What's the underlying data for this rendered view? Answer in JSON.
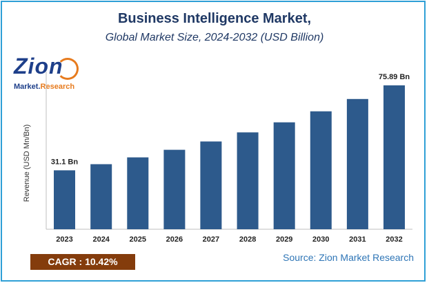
{
  "header": {
    "title": "Business Intelligence Market,",
    "subtitle": "Global Market Size, 2024-2032 (USD Billion)"
  },
  "logo": {
    "name": "Zion",
    "tagline_part1": "Market.",
    "tagline_part2": "Research"
  },
  "footer": {
    "cagr": "CAGR :  10.42%",
    "source": "Source: Zion Market Research"
  },
  "colors": {
    "bar": "#2d5a8c",
    "title": "#1f3864",
    "frame": "#2e9fd6",
    "cagr_bg": "#843c0c"
  },
  "chart_data": {
    "type": "bar",
    "categories": [
      "2023",
      "2024",
      "2025",
      "2026",
      "2027",
      "2028",
      "2029",
      "2030",
      "2031",
      "2032"
    ],
    "values": [
      31.1,
      34.3,
      37.9,
      41.9,
      46.3,
      51.1,
      56.4,
      62.2,
      68.7,
      75.89
    ],
    "data_labels": [
      "31.1 Bn",
      "",
      "",
      "",
      "",
      "",
      "",
      "",
      "",
      "75.89 Bn"
    ],
    "ylabel": "Revenue (USD Mn/Bn)",
    "xlabel": "",
    "ylim": [
      0,
      80
    ],
    "grid": false,
    "legend": "none"
  }
}
